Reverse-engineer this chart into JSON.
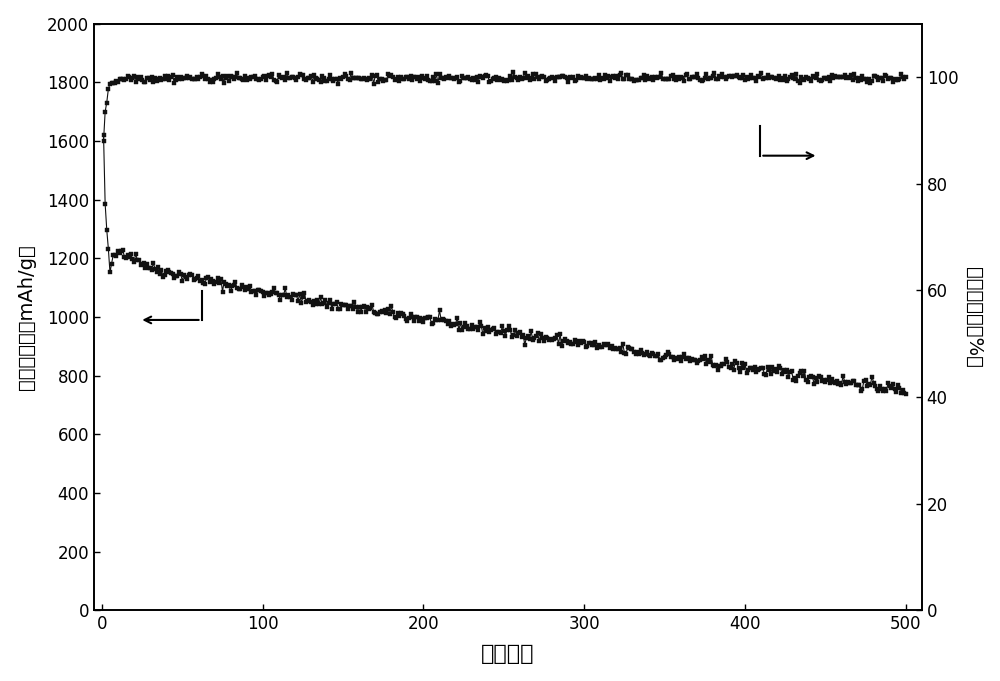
{
  "title": "",
  "xlabel": "循环次数",
  "ylabel_left": "放电比容量（mAh/g）",
  "ylabel_right": "容量保持率（%）",
  "xlim": [
    -5,
    510
  ],
  "ylim_left": [
    0,
    2000
  ],
  "ylim_right": [
    0,
    110
  ],
  "yticks_left": [
    0,
    200,
    400,
    600,
    800,
    1000,
    1200,
    1400,
    1600,
    1800,
    2000
  ],
  "yticks_right": [
    0,
    20,
    40,
    60,
    80,
    100
  ],
  "xticks": [
    0,
    100,
    200,
    300,
    400,
    500
  ],
  "background_color": "#ffffff",
  "plot_color": "#111111",
  "marker": "s",
  "markersize": 3.5,
  "linewidth": 0.8
}
